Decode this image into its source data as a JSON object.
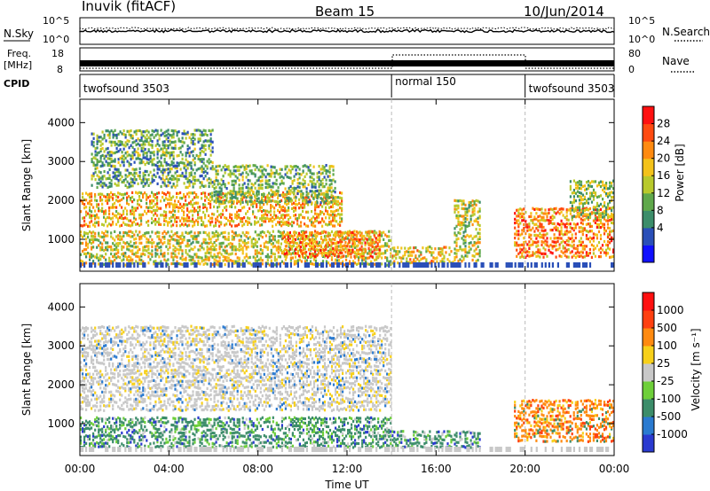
{
  "header": {
    "station": "Inuvik (fitACF)",
    "beam": "Beam 15",
    "date": "10/Jun/2014"
  },
  "top_panels": {
    "nsky": {
      "label": "N.Sky",
      "ticks": [
        "10^5",
        "10^0"
      ],
      "right_ticks": [
        "10^5",
        "10^0"
      ],
      "right_label": "N.Search"
    },
    "freq": {
      "label_line1": "Freq.",
      "label_line2": "[MHz]",
      "ticks": [
        "18",
        "8"
      ],
      "right_ticks": [
        "80",
        "0"
      ],
      "right_label": "Nave"
    },
    "cpid": {
      "label": "CPID",
      "segments": [
        {
          "name": "twofsound 3503",
          "start_h": 0,
          "end_h": 14
        },
        {
          "name": "normal 150",
          "start_h": 14,
          "end_h": 20
        },
        {
          "name": "twofsound 3503",
          "start_h": 20,
          "end_h": 24
        }
      ]
    }
  },
  "chart_data": [
    {
      "type": "heatmap",
      "title": "",
      "ylabel": "Slant Range [km]",
      "xlabel": "Time UT",
      "xlim_h": [
        0,
        24
      ],
      "ylim": [
        180,
        4600
      ],
      "yticks": [
        1000,
        2000,
        3000,
        4000
      ],
      "colorbar": {
        "label": "Power [dB]",
        "ticks": [
          "28",
          "24",
          "20",
          "16",
          "12",
          "8",
          "4"
        ],
        "tick_values": [
          28,
          24,
          20,
          16,
          12,
          8,
          4
        ],
        "range": [
          0,
          30
        ],
        "colors": [
          "#1010ff",
          "#2a4fb8",
          "#3c8d6a",
          "#5fa84b",
          "#b8c92c",
          "#f3c21a",
          "#ff8a10",
          "#ff4a10",
          "#ff1010"
        ]
      },
      "echo_regions": [
        {
          "t0": 0.0,
          "t1": 11.8,
          "r0": 1400,
          "r1": 2300,
          "level": 0.65
        },
        {
          "t0": 0.5,
          "t1": 6.0,
          "r0": 2400,
          "r1": 3900,
          "level": 0.35
        },
        {
          "t0": 6.0,
          "t1": 11.5,
          "r0": 2000,
          "r1": 3000,
          "level": 0.4
        },
        {
          "t0": 0.0,
          "t1": 14.0,
          "r0": 400,
          "r1": 1300,
          "level": 0.55
        },
        {
          "t0": 9.0,
          "t1": 13.5,
          "r0": 600,
          "r1": 1300,
          "level": 0.75
        },
        {
          "t0": 14.0,
          "t1": 16.8,
          "r0": 450,
          "r1": 900,
          "level": 0.6
        },
        {
          "t0": 16.8,
          "t1": 18.0,
          "r0": 500,
          "r1": 2100,
          "level": 0.5
        },
        {
          "t0": 19.5,
          "t1": 24.0,
          "r0": 600,
          "r1": 1900,
          "level": 0.75
        },
        {
          "t0": 22.0,
          "t1": 24.0,
          "r0": 1600,
          "r1": 2600,
          "level": 0.45
        }
      ]
    },
    {
      "type": "heatmap",
      "title": "",
      "ylabel": "Slant Range [km]",
      "xlabel": "Time UT",
      "xlim_h": [
        0,
        24
      ],
      "ylim": [
        180,
        4600
      ],
      "yticks": [
        1000,
        2000,
        3000,
        4000
      ],
      "xticks": [
        "00:00",
        "04:00",
        "08:00",
        "12:00",
        "16:00",
        "20:00",
        "00:00"
      ],
      "colorbar": {
        "label": "Velocity [m s⁻¹]",
        "ticks": [
          "1000",
          "500",
          "100",
          "25",
          "-25",
          "-100",
          "-500",
          "-1000"
        ],
        "tick_values": [
          1000,
          500,
          100,
          25,
          -25,
          -100,
          -500,
          -1000
        ],
        "colors": [
          "#2a3ad0",
          "#2a7ad0",
          "#3c8d6a",
          "#6ecf3a",
          "#c8c8c8",
          "#f7d01a",
          "#ff8a10",
          "#ff4010",
          "#ff1010"
        ]
      },
      "echo_regions": [
        {
          "t0": 0.0,
          "t1": 14.0,
          "r0": 1400,
          "r1": 3600,
          "level": 0.5
        },
        {
          "t0": 0.0,
          "t1": 14.0,
          "r0": 450,
          "r1": 1250,
          "level": 0.3
        },
        {
          "t0": 14.0,
          "t1": 18.0,
          "r0": 450,
          "r1": 900,
          "level": 0.3
        },
        {
          "t0": 19.5,
          "t1": 24.0,
          "r0": 600,
          "r1": 1700,
          "level": 0.85
        }
      ]
    }
  ]
}
